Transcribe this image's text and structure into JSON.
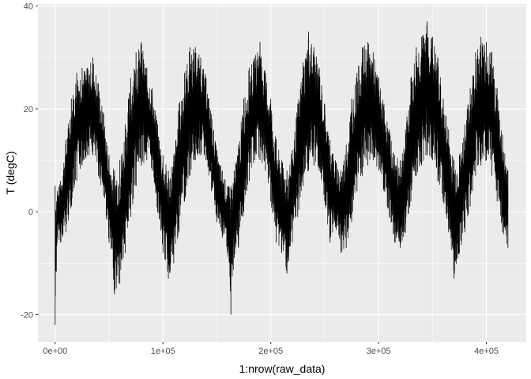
{
  "chart_data": {
    "type": "line",
    "title": "",
    "xlabel": "1:nrow(raw_data)",
    "ylabel": "T (degC)",
    "xlim": [
      -16000,
      437000
    ],
    "ylim": [
      -25.3,
      40.4
    ],
    "x_ticks": [
      {
        "value": 0,
        "label": "0e+00"
      },
      {
        "value": 100000,
        "label": "1e+05"
      },
      {
        "value": 200000,
        "label": "2e+05"
      },
      {
        "value": 300000,
        "label": "3e+05"
      },
      {
        "value": 400000,
        "label": "4e+05"
      }
    ],
    "y_ticks": [
      {
        "value": -20,
        "label": "-20"
      },
      {
        "value": 0,
        "label": "0"
      },
      {
        "value": 20,
        "label": "20"
      },
      {
        "value": 40,
        "label": "40"
      }
    ],
    "grid": true,
    "series": [
      {
        "color": "#000000",
        "x": [
          0,
          2000,
          5000,
          10000,
          15000,
          20000,
          25000,
          30000,
          35000,
          40000,
          45000,
          50000,
          55000,
          60000,
          65000,
          70000,
          75000,
          80000,
          85000,
          90000,
          95000,
          100000,
          105000,
          110000,
          115000,
          120000,
          125000,
          130000,
          135000,
          140000,
          145000,
          150000,
          155000,
          160000,
          163000,
          166000,
          170000,
          175000,
          180000,
          185000,
          190000,
          195000,
          200000,
          205000,
          210000,
          215000,
          220000,
          225000,
          230000,
          235000,
          240000,
          245000,
          250000,
          255000,
          260000,
          265000,
          270000,
          275000,
          280000,
          285000,
          290000,
          295000,
          300000,
          305000,
          310000,
          315000,
          320000,
          325000,
          330000,
          335000,
          340000,
          345000,
          350000,
          355000,
          360000,
          365000,
          370000,
          375000,
          380000,
          385000,
          390000,
          395000,
          400000,
          405000,
          410000,
          415000,
          420000
        ],
        "upper": [
          5,
          4,
          6,
          14,
          22,
          27,
          28,
          28,
          30,
          25,
          19,
          11,
          8,
          10,
          17,
          26,
          31,
          33,
          28,
          24,
          17,
          11,
          8,
          11,
          21,
          27,
          32,
          32,
          30,
          26,
          19,
          12,
          8,
          5,
          5,
          8,
          13,
          22,
          28,
          30,
          33,
          27,
          22,
          14,
          10,
          8,
          12,
          21,
          29,
          35,
          32,
          28,
          21,
          14,
          10,
          8,
          13,
          22,
          27,
          32,
          33,
          31,
          26,
          21,
          16,
          11,
          10,
          16,
          26,
          32,
          34,
          37,
          34,
          30,
          22,
          16,
          10,
          11,
          17,
          24,
          31,
          34,
          33,
          31,
          24,
          15,
          8
        ],
        "lower": [
          -22,
          -5,
          -6,
          -4,
          1,
          6,
          9,
          11,
          11,
          7,
          3,
          -6,
          -16,
          -14,
          -8,
          -1,
          5,
          9,
          10,
          8,
          0,
          -8,
          -13,
          -10,
          -4,
          2,
          7,
          10,
          11,
          10,
          4,
          -2,
          -5,
          -8,
          -20,
          -9,
          -7,
          0,
          6,
          10,
          10,
          8,
          2,
          -6,
          -8,
          -12,
          -6,
          -1,
          5,
          8,
          9,
          8,
          2,
          -6,
          -3,
          -8,
          -7,
          -2,
          4,
          7,
          9,
          10,
          8,
          4,
          -1,
          -6,
          -7,
          -4,
          2,
          7,
          9,
          11,
          10,
          6,
          2,
          -4,
          -13,
          -8,
          -4,
          1,
          7,
          9,
          10,
          7,
          2,
          -4,
          -7
        ]
      }
    ]
  }
}
